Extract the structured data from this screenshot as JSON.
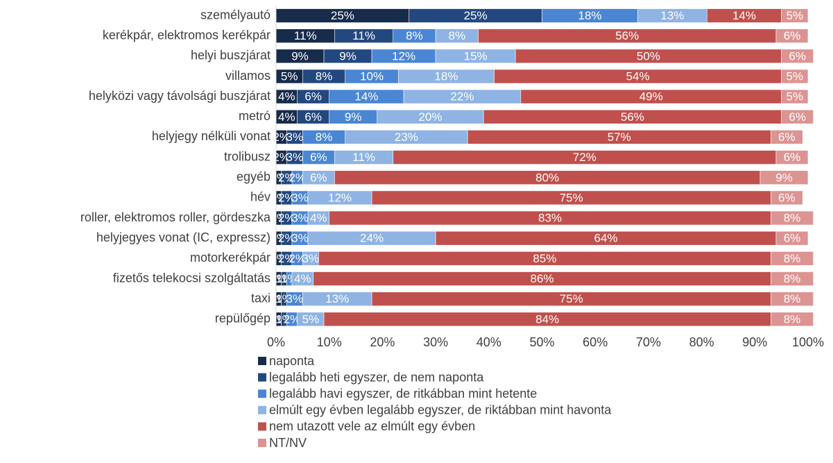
{
  "chart_data": {
    "type": "stacked-barh",
    "categories": [
      "személyautó",
      "kerékpár, elektromos kerékpár",
      "helyi buszjárat",
      "villamos",
      "helyközi vagy távolsági buszjárat",
      "metró",
      "helyjegy nélküli vonat",
      "trolibusz",
      "egyéb",
      "hév",
      "roller, elektromos roller, gördeszka",
      "helyjegyes vonat (IC, expressz)",
      "motorkerékpár",
      "fizetős telekocsi szolgáltatás",
      "taxi",
      "repülőgép"
    ],
    "series": [
      {
        "name": "naponta",
        "color": "#172b4b",
        "values": [
          25,
          11,
          9,
          5,
          4,
          4,
          2,
          2,
          1,
          1,
          1,
          1,
          1,
          1,
          1,
          1
        ],
        "value_labels": [
          "25%",
          "11%",
          "9%",
          "5%",
          "4%",
          "4%",
          "2%",
          "2%",
          "1%",
          "1%",
          "1%",
          "1%",
          "1%",
          "1%",
          "1%",
          "1%"
        ]
      },
      {
        "name": "legalább heti egyszer, de nem naponta",
        "color": "#23487f",
        "values": [
          25,
          11,
          9,
          8,
          6,
          6,
          3,
          3,
          2,
          2,
          2,
          2,
          2,
          1,
          1,
          1
        ],
        "value_labels": [
          "25%",
          "11%",
          "9%",
          "8%",
          "6%",
          "6%",
          "3%",
          "3%",
          "2%",
          "2%",
          "2%",
          "2%",
          "2%",
          "1%",
          "1%",
          "1%"
        ]
      },
      {
        "name": "legalább havi egyszer, de ritkábban mint hetente",
        "color": "#4a86d3",
        "values": [
          18,
          8,
          12,
          10,
          14,
          9,
          8,
          6,
          2,
          3,
          3,
          3,
          2,
          1,
          3,
          2
        ],
        "value_labels": [
          "18%",
          "8%",
          "12%",
          "10%",
          "14%",
          "9%",
          "8%",
          "6%",
          "2%",
          "3%",
          "3%",
          "3%",
          "2%",
          "1%",
          "3%",
          "2%"
        ]
      },
      {
        "name": "elmúlt egy évben legalább egyszer, de riktábban mint havonta",
        "color": "#8fb3e3",
        "values": [
          13,
          8,
          15,
          18,
          22,
          20,
          23,
          11,
          6,
          12,
          4,
          24,
          3,
          4,
          13,
          5
        ],
        "value_labels": [
          "13%",
          "8%",
          "15%",
          "18%",
          "22%",
          "20%",
          "23%",
          "11%",
          "6%",
          "12%",
          "4%",
          "24%",
          "3%",
          "4%",
          "13%",
          "5%"
        ]
      },
      {
        "name": "nem utazott vele az elmúlt egy évben",
        "color": "#c0504d",
        "values": [
          14,
          56,
          50,
          54,
          49,
          56,
          57,
          72,
          80,
          75,
          83,
          64,
          85,
          86,
          75,
          84
        ],
        "value_labels": [
          "14%",
          "56%",
          "50%",
          "54%",
          "49%",
          "56%",
          "57%",
          "72%",
          "80%",
          "75%",
          "83%",
          "64%",
          "85%",
          "86%",
          "75%",
          "84%"
        ]
      },
      {
        "name": "NT/NV",
        "color": "#dc9493",
        "values": [
          5,
          6,
          6,
          5,
          5,
          6,
          6,
          6,
          9,
          6,
          8,
          6,
          8,
          8,
          8,
          8
        ],
        "value_labels": [
          "5%",
          "6%",
          "6%",
          "5%",
          "5%",
          "6%",
          "6%",
          "6%",
          "9%",
          "6%",
          "8%",
          "6%",
          "8%",
          "8%",
          "8%",
          "8%"
        ]
      }
    ],
    "xlim": [
      0,
      100
    ],
    "xticks": [
      {
        "value": 0,
        "label": "0%"
      },
      {
        "value": 10,
        "label": "10%"
      },
      {
        "value": 20,
        "label": "20%"
      },
      {
        "value": 30,
        "label": "30%"
      },
      {
        "value": 40,
        "label": "40%"
      },
      {
        "value": 50,
        "label": "50%"
      },
      {
        "value": 60,
        "label": "60%"
      },
      {
        "value": 70,
        "label": "70%"
      },
      {
        "value": 80,
        "label": "80%"
      },
      {
        "value": 90,
        "label": "90%"
      },
      {
        "value": 100,
        "label": "100%"
      }
    ],
    "legend": "bottom"
  }
}
